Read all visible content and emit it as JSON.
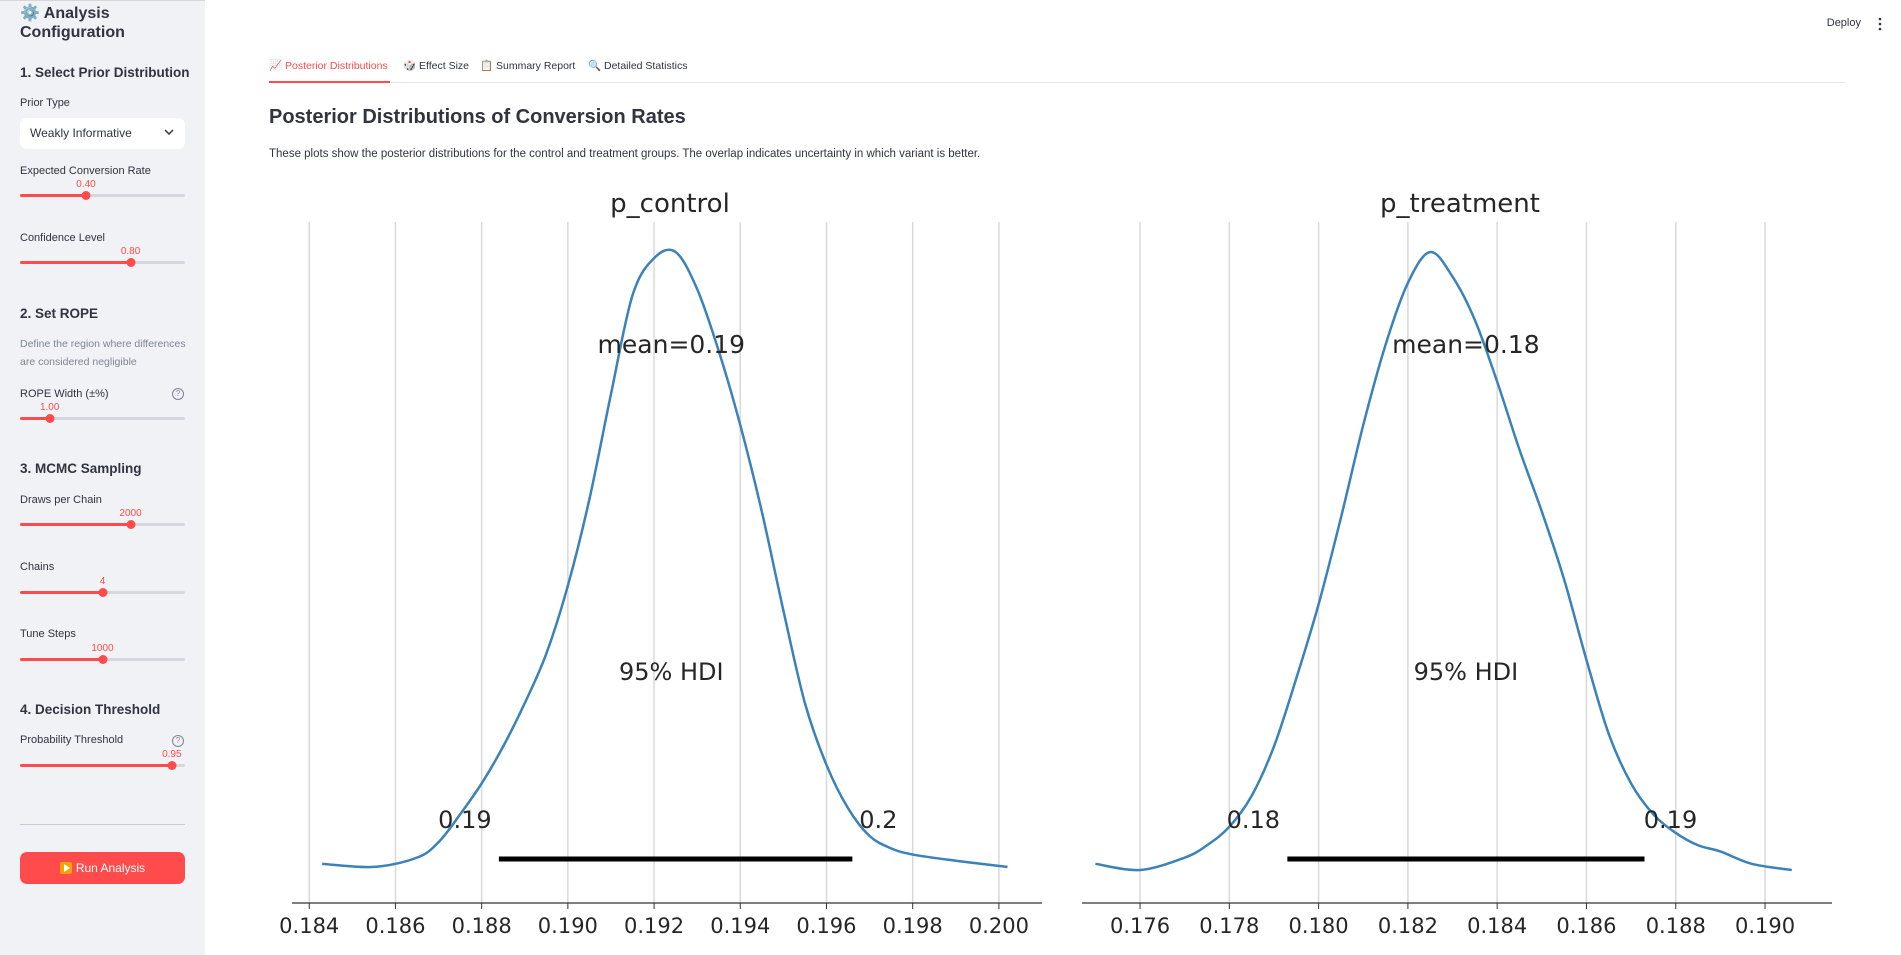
{
  "sidebar": {
    "title": "⚙️ Analysis Configuration",
    "sections": {
      "prior": "1. Select Prior Distribution",
      "rope": "2. Set ROPE",
      "mcmc": "3. MCMC Sampling",
      "decision": "4. Decision Threshold"
    },
    "prior_type": {
      "label": "Prior Type",
      "value": "Weakly Informative"
    },
    "expected_rate": {
      "label": "Expected Conversion Rate",
      "value": "0.40",
      "fraction": 0.4
    },
    "confidence": {
      "label": "Confidence Level",
      "value": "0.80",
      "fraction": 0.67
    },
    "rope_desc": "Define the region where differences are considered negligible",
    "rope_width": {
      "label": "ROPE Width (±%)",
      "value": "1.00",
      "fraction": 0.18
    },
    "draws": {
      "label": "Draws per Chain",
      "value": "2000",
      "fraction": 0.67
    },
    "chains": {
      "label": "Chains",
      "value": "4",
      "fraction": 0.5
    },
    "tune": {
      "label": "Tune Steps",
      "value": "1000",
      "fraction": 0.5
    },
    "prob_threshold": {
      "label": "Probability Threshold",
      "value": "0.95",
      "fraction": 0.92
    },
    "help_glyph": "?",
    "run_label": "Run Analysis"
  },
  "header": {
    "deploy_label": "Deploy"
  },
  "tabs": [
    {
      "label": "📈 Posterior Distributions",
      "active": true
    },
    {
      "label": "🎲 Effect Size",
      "active": false
    },
    {
      "label": "📋 Summary Report",
      "active": false
    },
    {
      "label": "🔍 Detailed Statistics",
      "active": false
    }
  ],
  "main": {
    "title": "Posterior Distributions of Conversion Rates",
    "description": "These plots show the posterior distributions for the control and treatment groups. The overlap indicates uncertainty in which variant is better."
  },
  "colors": {
    "accent": "#ff4b4b",
    "curve": "#3b82b8",
    "sidebar_bg": "#f0f2f6"
  },
  "chart_data": [
    {
      "type": "line",
      "title": "p_control",
      "mean_label": "mean=0.19",
      "hdi_label": "95% HDI",
      "hdi_low_label": "0.19",
      "hdi_high_label": "0.2",
      "hdi": [
        0.1884,
        0.1966
      ],
      "mean": 0.1924,
      "xlim": [
        0.1836,
        0.201
      ],
      "xticks": [
        0.184,
        0.186,
        0.188,
        0.19,
        0.192,
        0.194,
        0.196,
        0.198,
        0.2
      ],
      "xtick_labels": [
        "0.184",
        "0.186",
        "0.188",
        "0.190",
        "0.192",
        "0.194",
        "0.196",
        "0.198",
        "0.200"
      ],
      "x": [
        0.1843,
        0.1855,
        0.1865,
        0.187,
        0.1875,
        0.188,
        0.1885,
        0.189,
        0.1895,
        0.19,
        0.1905,
        0.191,
        0.1915,
        0.192,
        0.1925,
        0.193,
        0.1935,
        0.194,
        0.1945,
        0.195,
        0.1955,
        0.196,
        0.1965,
        0.197,
        0.1975,
        0.198,
        0.199,
        0.2002
      ],
      "y": [
        0.01,
        0.005,
        0.02,
        0.045,
        0.09,
        0.14,
        0.2,
        0.27,
        0.35,
        0.46,
        0.6,
        0.77,
        0.93,
        0.99,
        1.0,
        0.94,
        0.84,
        0.72,
        0.58,
        0.42,
        0.27,
        0.17,
        0.1,
        0.055,
        0.035,
        0.025,
        0.015,
        0.005
      ]
    },
    {
      "type": "line",
      "title": "p_treatment",
      "mean_label": "mean=0.18",
      "hdi_label": "95% HDI",
      "hdi_low_label": "0.18",
      "hdi_high_label": "0.19",
      "hdi": [
        0.1793,
        0.1873
      ],
      "mean": 0.1833,
      "xlim": [
        0.1747,
        0.1915
      ],
      "xticks": [
        0.176,
        0.178,
        0.18,
        0.182,
        0.184,
        0.186,
        0.188,
        0.19
      ],
      "xtick_labels": [
        "0.176",
        "0.178",
        "0.180",
        "0.182",
        "0.184",
        "0.186",
        "0.188",
        "0.190"
      ],
      "x": [
        0.175,
        0.176,
        0.177,
        0.1775,
        0.178,
        0.1785,
        0.179,
        0.1795,
        0.18,
        0.1805,
        0.181,
        0.1815,
        0.182,
        0.1825,
        0.183,
        0.1835,
        0.184,
        0.1845,
        0.185,
        0.1855,
        0.186,
        0.1865,
        0.187,
        0.1875,
        0.188,
        0.1885,
        0.189,
        0.1897,
        0.1906
      ],
      "y": [
        0.01,
        0.0,
        0.02,
        0.04,
        0.07,
        0.12,
        0.2,
        0.31,
        0.43,
        0.57,
        0.72,
        0.85,
        0.95,
        1.0,
        0.96,
        0.89,
        0.79,
        0.68,
        0.58,
        0.47,
        0.34,
        0.22,
        0.14,
        0.09,
        0.06,
        0.04,
        0.03,
        0.01,
        0.0
      ]
    }
  ]
}
